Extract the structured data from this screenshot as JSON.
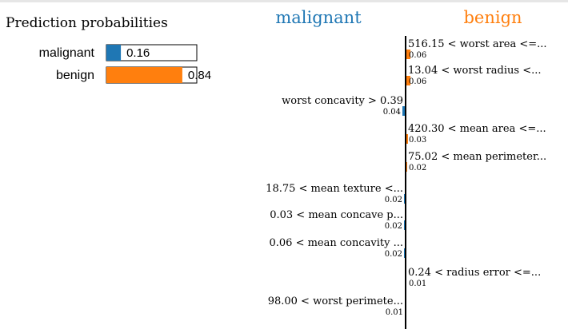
{
  "chart_data": [
    {
      "type": "bar",
      "title": "Prediction probabilities",
      "categories": [
        "malignant",
        "benign"
      ],
      "values": [
        0.16,
        0.84
      ],
      "value_labels": [
        "0.16",
        "0.84"
      ],
      "colors": [
        "#1f77b4",
        "#ff7f0e"
      ],
      "xlim": [
        0,
        1
      ]
    },
    {
      "type": "bar",
      "orientation": "horizontal",
      "class_labels": {
        "left": "malignant",
        "right": "benign"
      },
      "class_colors": {
        "left": "#1f77b4",
        "right": "#ff7f0e"
      },
      "features": [
        {
          "label": "516.15 < worst area <=...",
          "value": 0.06,
          "value_label": "0.06",
          "side": "right"
        },
        {
          "label": "13.04 < worst radius <...",
          "value": 0.06,
          "value_label": "0.06",
          "side": "right"
        },
        {
          "label": "worst concavity > 0.39",
          "value": 0.04,
          "value_label": "0.04",
          "side": "left"
        },
        {
          "label": "420.30 < mean area <=...",
          "value": 0.03,
          "value_label": "0.03",
          "side": "right"
        },
        {
          "label": "75.02 < mean perimeter...",
          "value": 0.02,
          "value_label": "0.02",
          "side": "right"
        },
        {
          "label": "18.75 < mean texture <...",
          "value": 0.02,
          "value_label": "0.02",
          "side": "left"
        },
        {
          "label": "0.03 < mean concave p...",
          "value": 0.02,
          "value_label": "0.02",
          "side": "left"
        },
        {
          "label": "0.06 < mean concavity ...",
          "value": 0.02,
          "value_label": "0.02",
          "side": "left"
        },
        {
          "label": "0.24 < radius error <=...",
          "value": 0.01,
          "value_label": "0.01",
          "side": "right"
        },
        {
          "label": "98.00 < worst perimete...",
          "value": 0.01,
          "value_label": "0.01",
          "side": "left"
        }
      ]
    }
  ]
}
